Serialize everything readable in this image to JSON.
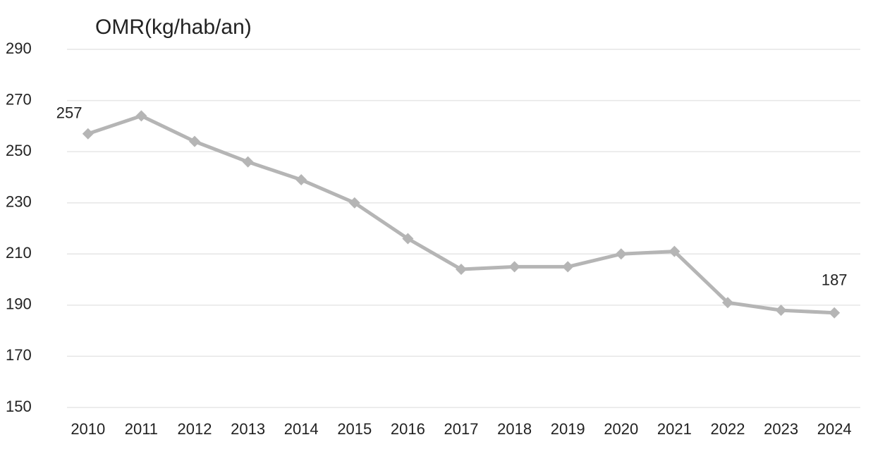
{
  "chart_data": {
    "type": "line",
    "title": "OMR(kg/hab/an)",
    "categories": [
      "2010",
      "2011",
      "2012",
      "2013",
      "2014",
      "2015",
      "2016",
      "2017",
      "2018",
      "2019",
      "2020",
      "2021",
      "2022",
      "2023",
      "2024"
    ],
    "values": [
      257,
      264,
      254,
      246,
      239,
      230,
      216,
      204,
      205,
      205,
      210,
      211,
      191,
      188,
      187
    ],
    "color": "#b5b5b5",
    "ylim": [
      150,
      290
    ],
    "yticks": [
      150,
      170,
      190,
      210,
      230,
      250,
      270,
      290
    ],
    "grid": true
  }
}
